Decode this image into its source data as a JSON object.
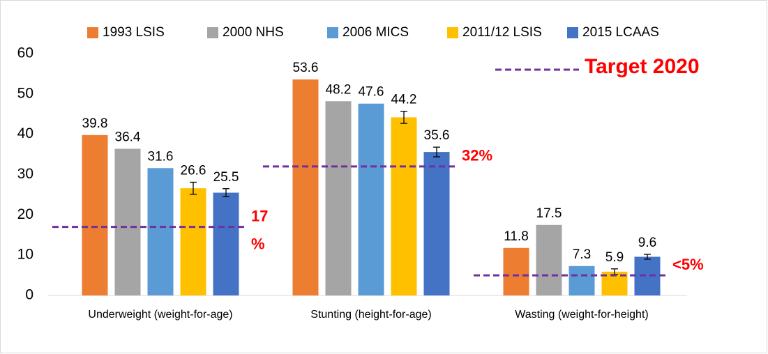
{
  "chart_data": {
    "type": "bar",
    "categories": [
      "Underweight (weight-for-age)",
      "Stunting (height-for-age)",
      "Wasting (weight-for-height)"
    ],
    "series": [
      {
        "name": "1993 LSIS",
        "color": "#ed7d31",
        "values": [
          39.8,
          53.6,
          11.8
        ],
        "errors": null
      },
      {
        "name": "2000 NHS",
        "color": "#a5a5a5",
        "values": [
          36.4,
          48.2,
          17.5
        ],
        "errors": null
      },
      {
        "name": "2006 MICS",
        "color": "#5b9bd5",
        "values": [
          31.6,
          47.6,
          7.3
        ],
        "errors": null
      },
      {
        "name": "2011/12 LSIS",
        "color": "#ffc000",
        "values": [
          26.6,
          44.2,
          5.9
        ],
        "errors": [
          1.5,
          1.5,
          0.7
        ]
      },
      {
        "name": "2015 LCAAS",
        "color": "#4472c4",
        "values": [
          25.5,
          35.6,
          9.6
        ],
        "errors": [
          1.0,
          1.2,
          0.6
        ]
      }
    ],
    "ylim": [
      0,
      60
    ],
    "yticks": [
      0,
      10,
      20,
      30,
      40,
      50,
      60
    ],
    "grid": false,
    "legend_position": "top",
    "target_legend": "Target 2020",
    "target_color": "#7030a0",
    "target_label_color": "#ff0000",
    "targets": [
      {
        "value": 17,
        "label": [
          "17",
          "%"
        ]
      },
      {
        "value": 32,
        "label": [
          "32%"
        ]
      },
      {
        "value": 5,
        "label": [
          "<5%"
        ]
      }
    ]
  }
}
